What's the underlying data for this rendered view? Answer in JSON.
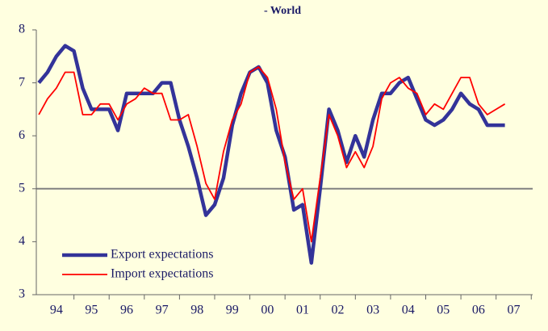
{
  "chart_data": {
    "type": "line",
    "title": "- World",
    "x": [
      1994,
      1994.25,
      1994.5,
      1994.75,
      1995,
      1995.25,
      1995.5,
      1995.75,
      1996,
      1996.25,
      1996.5,
      1996.75,
      1997,
      1997.25,
      1997.5,
      1997.75,
      1998,
      1998.25,
      1998.5,
      1998.75,
      1999,
      1999.25,
      1999.5,
      1999.75,
      2000,
      2000.25,
      2000.5,
      2000.75,
      2001,
      2001.25,
      2001.5,
      2001.75,
      2002,
      2002.25,
      2002.5,
      2002.75,
      2003,
      2003.25,
      2003.5,
      2003.75,
      2004,
      2004.25,
      2004.5,
      2004.75,
      2005,
      2005.25,
      2005.5,
      2005.75,
      2006,
      2006.25,
      2006.5,
      2006.75,
      2007,
      2007.25
    ],
    "series": [
      {
        "name": "Export expectations",
        "color": "#333399",
        "values": [
          7.0,
          7.2,
          7.5,
          7.7,
          7.6,
          6.9,
          6.5,
          6.5,
          6.5,
          6.1,
          6.8,
          6.8,
          6.8,
          6.8,
          7.0,
          7.0,
          6.3,
          5.8,
          5.2,
          4.5,
          4.7,
          5.2,
          6.2,
          6.8,
          7.2,
          7.3,
          7.0,
          6.1,
          5.6,
          4.6,
          4.7,
          3.6,
          5.0,
          6.5,
          6.1,
          5.5,
          6.0,
          5.6,
          6.3,
          6.8,
          6.8,
          7.0,
          7.1,
          6.7,
          6.3,
          6.2,
          6.3,
          6.5,
          6.8,
          6.6,
          6.5,
          6.2,
          6.2,
          6.2
        ]
      },
      {
        "name": "Import expectations",
        "color": "#ff0000",
        "values": [
          6.4,
          6.7,
          6.9,
          7.2,
          7.2,
          6.4,
          6.4,
          6.6,
          6.6,
          6.3,
          6.6,
          6.7,
          6.9,
          6.8,
          6.8,
          6.3,
          6.3,
          6.4,
          5.8,
          5.1,
          4.8,
          5.7,
          6.3,
          6.6,
          7.2,
          7.3,
          7.1,
          6.5,
          5.5,
          4.8,
          5.0,
          4.0,
          5.2,
          6.4,
          6.0,
          5.4,
          5.7,
          5.4,
          5.8,
          6.7,
          7.0,
          7.1,
          6.9,
          6.8,
          6.4,
          6.6,
          6.5,
          6.8,
          7.1,
          7.1,
          6.6,
          6.4,
          6.5,
          6.6
        ]
      }
    ],
    "xlim": [
      1993.93,
      2008.04
    ],
    "xticks": [
      {
        "value": 1994.5,
        "label": "94"
      },
      {
        "value": 1995.5,
        "label": "95"
      },
      {
        "value": 1996.5,
        "label": "96"
      },
      {
        "value": 1997.5,
        "label": "97"
      },
      {
        "value": 1998.5,
        "label": "98"
      },
      {
        "value": 1999.5,
        "label": "99"
      },
      {
        "value": 2000.5,
        "label": "00"
      },
      {
        "value": 2001.5,
        "label": "01"
      },
      {
        "value": 2002.5,
        "label": "02"
      },
      {
        "value": 2003.5,
        "label": "03"
      },
      {
        "value": 2004.5,
        "label": "04"
      },
      {
        "value": 2005.5,
        "label": "05"
      },
      {
        "value": 2006.5,
        "label": "06"
      },
      {
        "value": 2007.5,
        "label": "07"
      }
    ],
    "ylim": [
      3,
      8
    ],
    "yticks": [
      3,
      4,
      5,
      6,
      7,
      8
    ],
    "reference_line": 5,
    "legend": "lower left"
  }
}
